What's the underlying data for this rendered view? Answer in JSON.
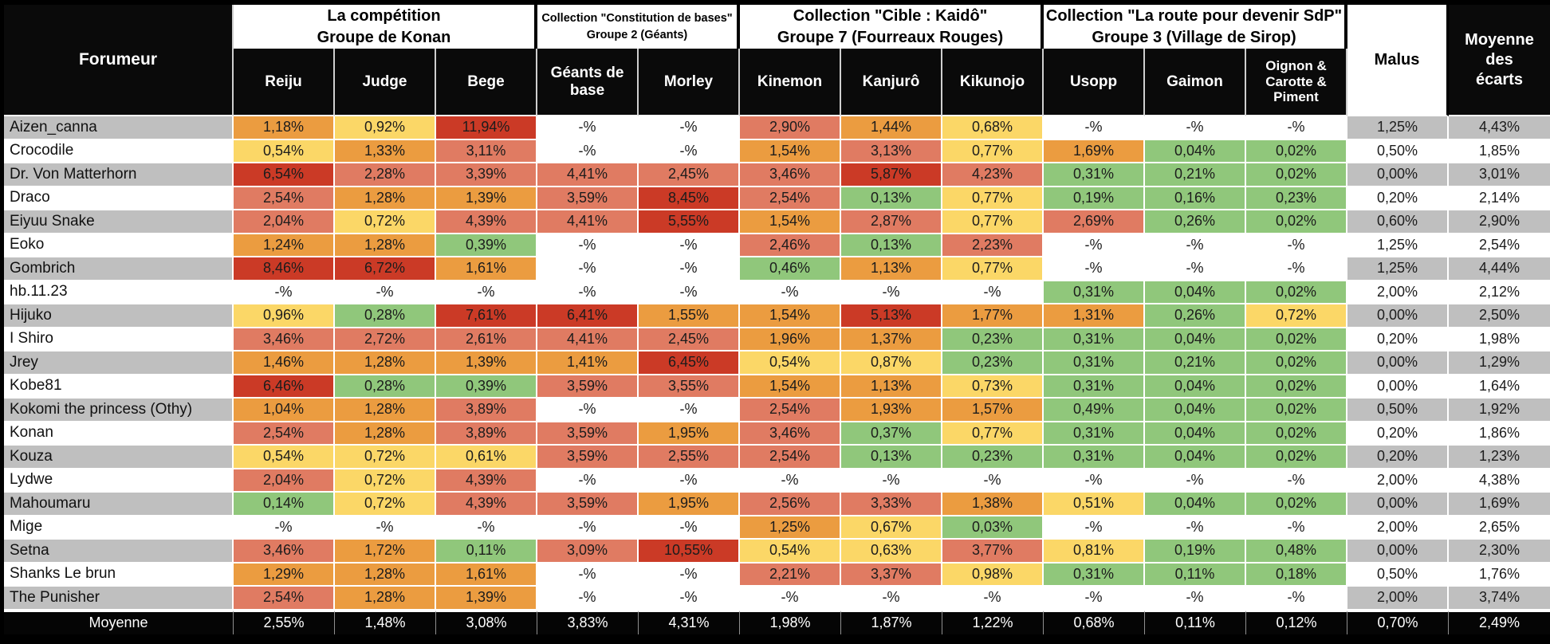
{
  "table": {
    "corner_header": "Forumeur",
    "groups": [
      {
        "title_line1": "La compétition",
        "title_line2": "Groupe de Konan",
        "small": false,
        "cols": [
          "Reiju",
          "Judge",
          "Bege"
        ]
      },
      {
        "title_line1": "Collection \"Constitution de bases\"",
        "title_line2": "Groupe 2 (Géants)",
        "small": true,
        "cols": [
          "Géants de base",
          "Morley"
        ]
      },
      {
        "title_line1": "Collection \"Cible : Kaidô\"",
        "title_line2": "Groupe 7 (Fourreaux Rouges)",
        "small": false,
        "cols": [
          "Kinemon",
          "Kanjurô",
          "Kikunojo"
        ]
      },
      {
        "title_line1": "Collection \"La route pour devenir SdP\"",
        "title_line2": "Groupe 3 (Village de Sirop)",
        "small": false,
        "cols": [
          "Usopp",
          "Gaimon",
          "Oignon & Carotte & Piment"
        ]
      }
    ],
    "malus_header": "Malus",
    "average_header": "Moyenne des écarts",
    "rows": [
      {
        "name": "Aizen_canna",
        "cells": [
          [
            "1,18%",
            "O"
          ],
          [
            "0,92%",
            "Y"
          ],
          [
            "11,94%",
            "R"
          ],
          [
            "-%",
            "W"
          ],
          [
            "-%",
            "W"
          ],
          [
            "2,90%",
            "S"
          ],
          [
            "1,44%",
            "O"
          ],
          [
            "0,68%",
            "Y"
          ],
          [
            "-%",
            "W"
          ],
          [
            "-%",
            "W"
          ],
          [
            "-%",
            "W"
          ]
        ],
        "malus": "1,25%",
        "avg": "4,43%"
      },
      {
        "name": "Crocodile",
        "cells": [
          [
            "0,54%",
            "Y"
          ],
          [
            "1,33%",
            "O"
          ],
          [
            "3,11%",
            "S"
          ],
          [
            "-%",
            "W"
          ],
          [
            "-%",
            "W"
          ],
          [
            "1,54%",
            "O"
          ],
          [
            "3,13%",
            "S"
          ],
          [
            "0,77%",
            "Y"
          ],
          [
            "1,69%",
            "O"
          ],
          [
            "0,04%",
            "G"
          ],
          [
            "0,02%",
            "G"
          ]
        ],
        "malus": "0,50%",
        "avg": "1,85%"
      },
      {
        "name": "Dr. Von Matterhorn",
        "cells": [
          [
            "6,54%",
            "R"
          ],
          [
            "2,28%",
            "S"
          ],
          [
            "3,39%",
            "S"
          ],
          [
            "4,41%",
            "S"
          ],
          [
            "2,45%",
            "S"
          ],
          [
            "3,46%",
            "S"
          ],
          [
            "5,87%",
            "R"
          ],
          [
            "4,23%",
            "S"
          ],
          [
            "0,31%",
            "G"
          ],
          [
            "0,21%",
            "G"
          ],
          [
            "0,02%",
            "G"
          ]
        ],
        "malus": "0,00%",
        "avg": "3,01%"
      },
      {
        "name": "Draco",
        "cells": [
          [
            "2,54%",
            "S"
          ],
          [
            "1,28%",
            "O"
          ],
          [
            "1,39%",
            "O"
          ],
          [
            "3,59%",
            "S"
          ],
          [
            "8,45%",
            "R"
          ],
          [
            "2,54%",
            "S"
          ],
          [
            "0,13%",
            "G"
          ],
          [
            "0,77%",
            "Y"
          ],
          [
            "0,19%",
            "G"
          ],
          [
            "0,16%",
            "G"
          ],
          [
            "0,23%",
            "G"
          ]
        ],
        "malus": "0,20%",
        "avg": "2,14%"
      },
      {
        "name": "Eiyuu Snake",
        "cells": [
          [
            "2,04%",
            "S"
          ],
          [
            "0,72%",
            "Y"
          ],
          [
            "4,39%",
            "S"
          ],
          [
            "4,41%",
            "S"
          ],
          [
            "5,55%",
            "R"
          ],
          [
            "1,54%",
            "O"
          ],
          [
            "2,87%",
            "S"
          ],
          [
            "0,77%",
            "Y"
          ],
          [
            "2,69%",
            "S"
          ],
          [
            "0,26%",
            "G"
          ],
          [
            "0,02%",
            "G"
          ]
        ],
        "malus": "0,60%",
        "avg": "2,90%"
      },
      {
        "name": "Eoko",
        "cells": [
          [
            "1,24%",
            "O"
          ],
          [
            "1,28%",
            "O"
          ],
          [
            "0,39%",
            "G"
          ],
          [
            "-%",
            "W"
          ],
          [
            "-%",
            "W"
          ],
          [
            "2,46%",
            "S"
          ],
          [
            "0,13%",
            "G"
          ],
          [
            "2,23%",
            "S"
          ],
          [
            "-%",
            "W"
          ],
          [
            "-%",
            "W"
          ],
          [
            "-%",
            "W"
          ]
        ],
        "malus": "1,25%",
        "avg": "2,54%"
      },
      {
        "name": "Gombrich",
        "cells": [
          [
            "8,46%",
            "R"
          ],
          [
            "6,72%",
            "R"
          ],
          [
            "1,61%",
            "O"
          ],
          [
            "-%",
            "W"
          ],
          [
            "-%",
            "W"
          ],
          [
            "0,46%",
            "G"
          ],
          [
            "1,13%",
            "O"
          ],
          [
            "0,77%",
            "Y"
          ],
          [
            "-%",
            "W"
          ],
          [
            "-%",
            "W"
          ],
          [
            "-%",
            "W"
          ]
        ],
        "malus": "1,25%",
        "avg": "4,44%"
      },
      {
        "name": "hb.11.23",
        "cells": [
          [
            "-%",
            "W"
          ],
          [
            "-%",
            "W"
          ],
          [
            "-%",
            "W"
          ],
          [
            "-%",
            "W"
          ],
          [
            "-%",
            "W"
          ],
          [
            "-%",
            "W"
          ],
          [
            "-%",
            "W"
          ],
          [
            "-%",
            "W"
          ],
          [
            "0,31%",
            "G"
          ],
          [
            "0,04%",
            "G"
          ],
          [
            "0,02%",
            "G"
          ]
        ],
        "malus": "2,00%",
        "avg": "2,12%"
      },
      {
        "name": "Hijuko",
        "cells": [
          [
            "0,96%",
            "Y"
          ],
          [
            "0,28%",
            "G"
          ],
          [
            "7,61%",
            "R"
          ],
          [
            "6,41%",
            "R"
          ],
          [
            "1,55%",
            "O"
          ],
          [
            "1,54%",
            "O"
          ],
          [
            "5,13%",
            "R"
          ],
          [
            "1,77%",
            "O"
          ],
          [
            "1,31%",
            "O"
          ],
          [
            "0,26%",
            "G"
          ],
          [
            "0,72%",
            "Y"
          ]
        ],
        "malus": "0,00%",
        "avg": "2,50%"
      },
      {
        "name": "I Shiro",
        "cells": [
          [
            "3,46%",
            "S"
          ],
          [
            "2,72%",
            "S"
          ],
          [
            "2,61%",
            "S"
          ],
          [
            "4,41%",
            "S"
          ],
          [
            "2,45%",
            "S"
          ],
          [
            "1,96%",
            "O"
          ],
          [
            "1,37%",
            "O"
          ],
          [
            "0,23%",
            "G"
          ],
          [
            "0,31%",
            "G"
          ],
          [
            "0,04%",
            "G"
          ],
          [
            "0,02%",
            "G"
          ]
        ],
        "malus": "0,20%",
        "avg": "1,98%"
      },
      {
        "name": "Jrey",
        "cells": [
          [
            "1,46%",
            "O"
          ],
          [
            "1,28%",
            "O"
          ],
          [
            "1,39%",
            "O"
          ],
          [
            "1,41%",
            "O"
          ],
          [
            "6,45%",
            "R"
          ],
          [
            "0,54%",
            "Y"
          ],
          [
            "0,87%",
            "Y"
          ],
          [
            "0,23%",
            "G"
          ],
          [
            "0,31%",
            "G"
          ],
          [
            "0,21%",
            "G"
          ],
          [
            "0,02%",
            "G"
          ]
        ],
        "malus": "0,00%",
        "avg": "1,29%"
      },
      {
        "name": "Kobe81",
        "cells": [
          [
            "6,46%",
            "R"
          ],
          [
            "0,28%",
            "G"
          ],
          [
            "0,39%",
            "G"
          ],
          [
            "3,59%",
            "S"
          ],
          [
            "3,55%",
            "S"
          ],
          [
            "1,54%",
            "O"
          ],
          [
            "1,13%",
            "O"
          ],
          [
            "0,73%",
            "Y"
          ],
          [
            "0,31%",
            "G"
          ],
          [
            "0,04%",
            "G"
          ],
          [
            "0,02%",
            "G"
          ]
        ],
        "malus": "0,00%",
        "avg": "1,64%"
      },
      {
        "name": "Kokomi the princess (Othy)",
        "cells": [
          [
            "1,04%",
            "O"
          ],
          [
            "1,28%",
            "O"
          ],
          [
            "3,89%",
            "S"
          ],
          [
            "-%",
            "W"
          ],
          [
            "-%",
            "W"
          ],
          [
            "2,54%",
            "S"
          ],
          [
            "1,93%",
            "O"
          ],
          [
            "1,57%",
            "O"
          ],
          [
            "0,49%",
            "G"
          ],
          [
            "0,04%",
            "G"
          ],
          [
            "0,02%",
            "G"
          ]
        ],
        "malus": "0,50%",
        "avg": "1,92%"
      },
      {
        "name": "Konan",
        "cells": [
          [
            "2,54%",
            "S"
          ],
          [
            "1,28%",
            "O"
          ],
          [
            "3,89%",
            "S"
          ],
          [
            "3,59%",
            "S"
          ],
          [
            "1,95%",
            "O"
          ],
          [
            "3,46%",
            "S"
          ],
          [
            "0,37%",
            "G"
          ],
          [
            "0,77%",
            "Y"
          ],
          [
            "0,31%",
            "G"
          ],
          [
            "0,04%",
            "G"
          ],
          [
            "0,02%",
            "G"
          ]
        ],
        "malus": "0,20%",
        "avg": "1,86%"
      },
      {
        "name": "Kouza",
        "cells": [
          [
            "0,54%",
            "Y"
          ],
          [
            "0,72%",
            "Y"
          ],
          [
            "0,61%",
            "Y"
          ],
          [
            "3,59%",
            "S"
          ],
          [
            "2,55%",
            "S"
          ],
          [
            "2,54%",
            "S"
          ],
          [
            "0,13%",
            "G"
          ],
          [
            "0,23%",
            "G"
          ],
          [
            "0,31%",
            "G"
          ],
          [
            "0,04%",
            "G"
          ],
          [
            "0,02%",
            "G"
          ]
        ],
        "malus": "0,20%",
        "avg": "1,23%"
      },
      {
        "name": "Lydwe",
        "cells": [
          [
            "2,04%",
            "S"
          ],
          [
            "0,72%",
            "Y"
          ],
          [
            "4,39%",
            "S"
          ],
          [
            "-%",
            "W"
          ],
          [
            "-%",
            "W"
          ],
          [
            "-%",
            "W"
          ],
          [
            "-%",
            "W"
          ],
          [
            "-%",
            "W"
          ],
          [
            "-%",
            "W"
          ],
          [
            "-%",
            "W"
          ],
          [
            "-%",
            "W"
          ]
        ],
        "malus": "2,00%",
        "avg": "4,38%"
      },
      {
        "name": "Mahoumaru",
        "cells": [
          [
            "0,14%",
            "G"
          ],
          [
            "0,72%",
            "Y"
          ],
          [
            "4,39%",
            "S"
          ],
          [
            "3,59%",
            "S"
          ],
          [
            "1,95%",
            "O"
          ],
          [
            "2,56%",
            "S"
          ],
          [
            "3,33%",
            "S"
          ],
          [
            "1,38%",
            "O"
          ],
          [
            "0,51%",
            "Y"
          ],
          [
            "0,04%",
            "G"
          ],
          [
            "0,02%",
            "G"
          ]
        ],
        "malus": "0,00%",
        "avg": "1,69%"
      },
      {
        "name": "Mige",
        "cells": [
          [
            "-%",
            "W"
          ],
          [
            "-%",
            "W"
          ],
          [
            "-%",
            "W"
          ],
          [
            "-%",
            "W"
          ],
          [
            "-%",
            "W"
          ],
          [
            "1,25%",
            "O"
          ],
          [
            "0,67%",
            "Y"
          ],
          [
            "0,03%",
            "G"
          ],
          [
            "-%",
            "W"
          ],
          [
            "-%",
            "W"
          ],
          [
            "-%",
            "W"
          ]
        ],
        "malus": "2,00%",
        "avg": "2,65%"
      },
      {
        "name": "Setna",
        "cells": [
          [
            "3,46%",
            "S"
          ],
          [
            "1,72%",
            "O"
          ],
          [
            "0,11%",
            "G"
          ],
          [
            "3,09%",
            "S"
          ],
          [
            "10,55%",
            "R"
          ],
          [
            "0,54%",
            "Y"
          ],
          [
            "0,63%",
            "Y"
          ],
          [
            "3,77%",
            "S"
          ],
          [
            "0,81%",
            "Y"
          ],
          [
            "0,19%",
            "G"
          ],
          [
            "0,48%",
            "G"
          ]
        ],
        "malus": "0,00%",
        "avg": "2,30%"
      },
      {
        "name": "Shanks Le brun",
        "cells": [
          [
            "1,29%",
            "O"
          ],
          [
            "1,28%",
            "O"
          ],
          [
            "1,61%",
            "O"
          ],
          [
            "-%",
            "W"
          ],
          [
            "-%",
            "W"
          ],
          [
            "2,21%",
            "S"
          ],
          [
            "3,37%",
            "S"
          ],
          [
            "0,98%",
            "Y"
          ],
          [
            "0,31%",
            "G"
          ],
          [
            "0,11%",
            "G"
          ],
          [
            "0,18%",
            "G"
          ]
        ],
        "malus": "0,50%",
        "avg": "1,76%"
      },
      {
        "name": "The Punisher",
        "cells": [
          [
            "2,54%",
            "S"
          ],
          [
            "1,28%",
            "O"
          ],
          [
            "1,39%",
            "O"
          ],
          [
            "-%",
            "W"
          ],
          [
            "-%",
            "W"
          ],
          [
            "-%",
            "W"
          ],
          [
            "-%",
            "W"
          ],
          [
            "-%",
            "W"
          ],
          [
            "-%",
            "W"
          ],
          [
            "-%",
            "W"
          ],
          [
            "-%",
            "W"
          ]
        ],
        "malus": "2,00%",
        "avg": "3,74%"
      }
    ],
    "footer": {
      "name": "Moyenne",
      "values": [
        "2,55%",
        "1,48%",
        "3,08%",
        "3,83%",
        "4,31%",
        "1,98%",
        "1,87%",
        "1,22%",
        "0,68%",
        "0,11%",
        "0,12%"
      ],
      "malus": "0,70%",
      "avg": "2,49%"
    }
  },
  "colors": {
    "R": "#cb3a26",
    "S": "#e07b62",
    "O": "#eb9c40",
    "Y": "#fbd767",
    "G": "#90c77b",
    "W": "#ffffff",
    "row_alt_gray": "#bfbfbf",
    "row_white": "#ffffff",
    "header_bg": "#0a0a0a",
    "header_text": "#ffffff"
  }
}
